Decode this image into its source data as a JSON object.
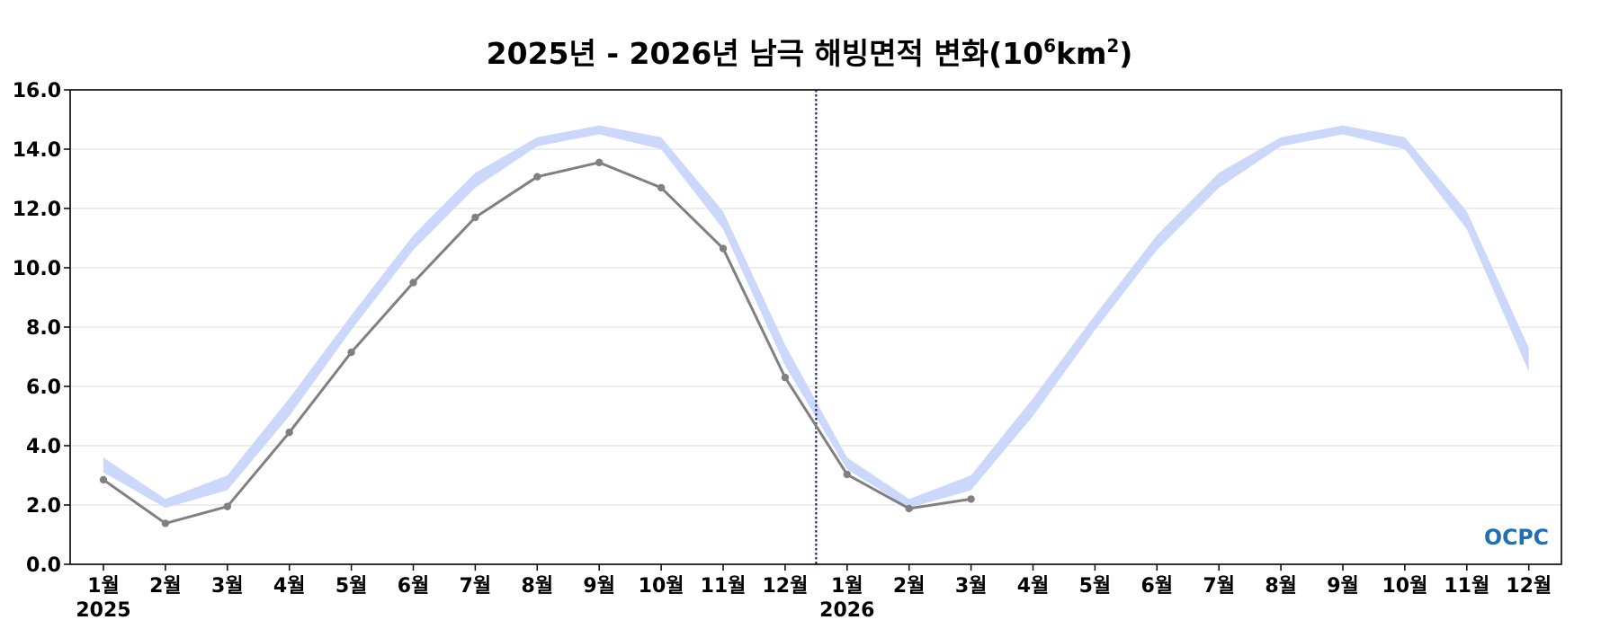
{
  "chart_data": {
    "type": "line",
    "title_main": "2025년 - 2026년 남극 해빙면적 변화(10",
    "title_sup1": "6",
    "title_mid": "km",
    "title_sup2": "2",
    "title_end": ")",
    "ylim": [
      0,
      16
    ],
    "y_ticks": [
      "0.0",
      "2.0",
      "4.0",
      "6.0",
      "8.0",
      "10.0",
      "12.0",
      "14.0",
      "16.0"
    ],
    "x_tick_labels": [
      "1월",
      "2월",
      "3월",
      "4월",
      "5월",
      "6월",
      "7월",
      "8월",
      "9월",
      "10월",
      "11월",
      "12월",
      "1월",
      "2월",
      "3월",
      "4월",
      "5월",
      "6월",
      "7월",
      "8월",
      "9월",
      "10월",
      "11월",
      "12월"
    ],
    "year_labels": [
      "2025",
      "2026"
    ],
    "grid": true,
    "climatology_band": {
      "lower": [
        3.1,
        1.9,
        2.5,
        5.0,
        7.9,
        10.6,
        12.7,
        14.1,
        14.5,
        14.0,
        11.3,
        6.7,
        3.2,
        1.9,
        2.5,
        5.0,
        7.9,
        10.6,
        12.7,
        14.1,
        14.5,
        14.0,
        11.3,
        6.5
      ],
      "upper": [
        3.6,
        2.2,
        3.0,
        5.6,
        8.4,
        11.1,
        13.2,
        14.4,
        14.8,
        14.4,
        11.9,
        7.4,
        3.6,
        2.2,
        3.0,
        5.6,
        8.4,
        11.1,
        13.2,
        14.4,
        14.8,
        14.4,
        11.9,
        7.3
      ]
    },
    "series": [
      {
        "values": [
          2.85,
          1.38,
          1.95,
          4.45,
          7.15,
          9.5,
          11.7,
          13.07,
          13.55,
          12.7,
          10.65,
          6.3,
          3.03,
          1.88,
          2.2
        ]
      }
    ],
    "divider_after_index": 11,
    "colors": {
      "band": "#ccd8fb",
      "line": "#808080",
      "divider": "#1a2a6c",
      "grid": "#e3e3e3"
    }
  },
  "logo": {
    "text": "OCPC"
  }
}
